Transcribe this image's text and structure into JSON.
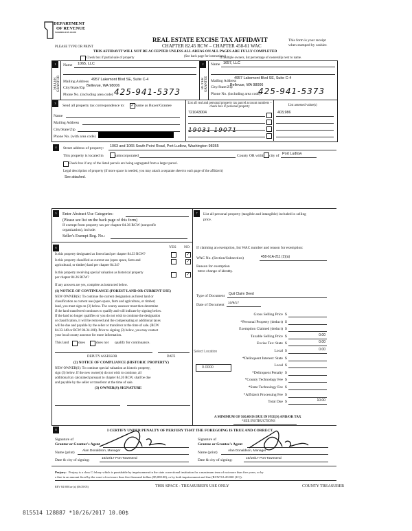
{
  "header": {
    "logo_line1": "DEPARTMENT",
    "logo_line2": "OF REVENUE",
    "logo_line3": "WASHINGTON STATE",
    "title": "REAL ESTATE EXCISE TAX AFFIDAVIT",
    "chapter": "CHAPTER 82.45 RCW – CHAPTER 458-61 WAC",
    "receipt_note_1": "This form is your receipt",
    "receipt_note_2": "when stamped by cashier.",
    "type_or_print": "PLEASE TYPE OR PRINT",
    "warning": "THIS AFFIDAVIT WILL NOT BE ACCEPTED UNLESS ALL AREAS ON ALL PAGES ARE FULLY COMPLETED",
    "instructions": "(See back page for instructions)",
    "partial_sale_label": "Check box if partial sale of property",
    "multiple_owners_note": "If multiple owners, list percentage of ownership next to name."
  },
  "seller": {
    "section": "1",
    "side_label": "SELLER GRANTOR",
    "name_label": "Name",
    "name": "1065, LLC",
    "mailing_label": "Mailing Address",
    "mailing": "4957 Lakemont Blvd SE, Suite C-4",
    "city_label": "City/State/Zip",
    "city": "Bellevue, WA 98006",
    "phone_label": "Phone No. (including area code)",
    "phone": "425-941-5373"
  },
  "buyer": {
    "section": "2",
    "side_label": "BUYER GRANTEE",
    "name_label": "Name",
    "name": "1657, LLC",
    "mailing_label": "Mailing Address",
    "mailing": "4957 Lakemont Blvd SE, Suite C-4",
    "city_label": "City/State/Zip",
    "city": "Bellevue, WA 98006",
    "phone_label": "Phone No. (including area code)",
    "phone": "425-941-5373"
  },
  "correspondence": {
    "section": "3",
    "label": "Send all property tax correspondence to:",
    "same_label": "Same as Buyer/Grantee",
    "same_checked": true,
    "name_label": "Name",
    "mailing_label": "Mailing Address",
    "city_label": "City/State/Zip",
    "phone_label": "Phone No. (with area code)"
  },
  "parcels": {
    "header": "List all real and personal property tax parcel account numbers – check box if personal property",
    "values_header": "List assessed value(s)",
    "rows": [
      {
        "number": "721043004",
        "value": "403,986"
      },
      {
        "number": "",
        "value": ""
      },
      {
        "number": "19031 19071",
        "value": ""
      },
      {
        "number": "",
        "value": ""
      }
    ]
  },
  "property": {
    "section": "4",
    "street_label": "Street address of property:",
    "street": "1063 and 1065 South Point Road, Port Ludlow, Washington 98365",
    "located_label": "This property is located in",
    "unincorporated_label": "unincorporated",
    "county_label": "County OR within",
    "city_of_label": "city of",
    "city_of": "Port Ludlow",
    "segregated_label": "Check box if any of the listed parcels are being segregated from a larger parcel.",
    "legal_label": "Legal description of property (if more space is needed, you may attach a separate sheet to each page of the affidavit)",
    "legal": "See attached."
  },
  "abstract": {
    "section": "5",
    "label": "Enter Abstract Use Categories:",
    "see_list": "(Please see list on the back page of this form)",
    "exempt_1": "If exempt from property tax per chapter 84.36 RCW (nonprofit",
    "exempt_2": "organization), include:",
    "reg_label": "Seller's Exempt Reg. No.:"
  },
  "questions": {
    "section": "6",
    "yes": "YES",
    "no": "NO",
    "items": [
      {
        "q1": "Is this property designated as forest land per chapter 84.33 RCW?",
        "q2": "",
        "answer": "NO"
      },
      {
        "q1": "Is this property classified as current use (open space, farm and",
        "q2": "agricultural, or timber) land per chapter 84.34?",
        "answer": "NO"
      },
      {
        "q1": "Is this property receiving special valuation as historical property",
        "q2": "per chapter 84.26 RCW?",
        "answer": "NO"
      }
    ],
    "if_yes": "If any answers are yes, complete as instructed below.",
    "notice1_title": "(1) NOTICE OF CONTINUANCE (FOREST LAND OR CURRENT USE)",
    "notice1_lines": [
      "NEW OWNER(S): To continue the current designation as forest land or",
      "classification as current use (open space, farm and agriculture, or timber)",
      "land, you must sign on (3) below. The county assessor must then determine",
      "if the land transferred continues to qualify and will indicate by signing below.",
      "If the land no longer qualifies or you do not wish to continue the designation",
      "or classification, it will be removed and the compensating or additional taxes",
      "will be due and payable by the seller or transferor at the time of sale. (RCW",
      "84.33.140 or RCW 84.34.108). Prior to signing (3) below, you may contact",
      "your local county assessor for more information."
    ],
    "this_land": "This land",
    "does": "does",
    "does_not": "does not",
    "qualify": "qualify for continuance.",
    "deputy": "DEPUTY ASSESSOR",
    "date": "DATE",
    "notice2_title": "(2) NOTICE OF COMPLIANCE (HISTORIC PROPERTY)",
    "notice2_lines": [
      "NEW OWNER(S): To continue special valuation as historic property,",
      "sign (3) below. If the new owner(s) do not wish to continue, all",
      "additional tax calculated pursuant to chapter 84.26 RCW, shall be due",
      "and payable by the seller or transferor at the time of sale."
    ],
    "owner_sig": "(3) OWNER(S) SIGNATURE"
  },
  "personal_property": {
    "section": "7",
    "label_1": "List all personal property (tangible and intangible) included in selling",
    "label_2": "price."
  },
  "exemption": {
    "label": "If claiming an exemption, list WAC number and reason for exemption:",
    "wac_label": "WAC No. (Section/Subsection)",
    "wac": "458-61A-211 (2)(a)",
    "reason_label": "Reason for exemption",
    "reason": "Mere change of identity.",
    "doc_type_label": "Type of Document",
    "doc_type": "Quit Claim Deed",
    "doc_date_label": "Date of Document",
    "doc_date": "10/9/17"
  },
  "tax": {
    "rows": [
      {
        "label": "Gross Selling Price",
        "value": ""
      },
      {
        "label": "*Personal Property (deduct)",
        "value": ""
      },
      {
        "label": "Exemption Claimed (deduct)",
        "value": ""
      },
      {
        "label": "Taxable Selling Price",
        "value": "0.00"
      },
      {
        "label": "Excise Tax: State",
        "value": "0.00"
      },
      {
        "label": "Local",
        "value": "0.00"
      },
      {
        "label": "*Delinquent Interest:   State",
        "value": ""
      },
      {
        "label": "Local",
        "value": ""
      },
      {
        "label": "*Delinquent Penalty",
        "value": ""
      },
      {
        "label": "*County Technology Fee",
        "value": ""
      },
      {
        "label": "*State Technology Fee",
        "value": ""
      },
      {
        "label": "*Affidavit Processing Fee",
        "value": ""
      },
      {
        "label": "Total Due",
        "value": "10.00"
      }
    ],
    "currency": "$",
    "select_location": "Select Location",
    "rate": "0.0000",
    "minimum_1": "A MINIMUM OF $10.00 IS DUE IN FEE(S) AND/OR TAX",
    "minimum_2": "*SEE INSTRUCTIONS"
  },
  "certify": {
    "section": "8",
    "title": "I CERTIFY UNDER PENALTY OF PERJURY THAT THE FOREGOING IS TRUE AND CORRECT.",
    "grantor_sig_1": "Signature of",
    "grantor_sig_2": "Grantor or Grantor's Agent",
    "grantee_sig_2": "Grantee or Grantee's Agent",
    "name_label": "Name (print)",
    "grantor_name": "Alan Donaldson, Manager",
    "grantee_name": "Alan Donaldson, Manager",
    "date_label": "Date & city of signing:",
    "grantor_date": "10/10/17 Port Townsend",
    "grantee_date": "10/10/17  Port Townsend"
  },
  "footer": {
    "perjury_bold": "Perjury:",
    "perjury_1": "Perjury is a class C felony which is punishable by imprisonment in the state correctional institution for a maximum term of not more than five years, or by",
    "perjury_2": "a fine in an amount fixed by the court of not more than five thousand dollars ($5,000.00), or by both imprisonment and fine (RCW 9A.20.020 (1C)).",
    "rev": "REV 84 0001ae (a) (06/29/05)",
    "treasurer_space": "THIS SPACE - TREASURER'S USE ONLY",
    "county_treasurer": "COUNTY TREASURER",
    "stamp": "815514 128887 *10/26/2017 10.00$"
  }
}
